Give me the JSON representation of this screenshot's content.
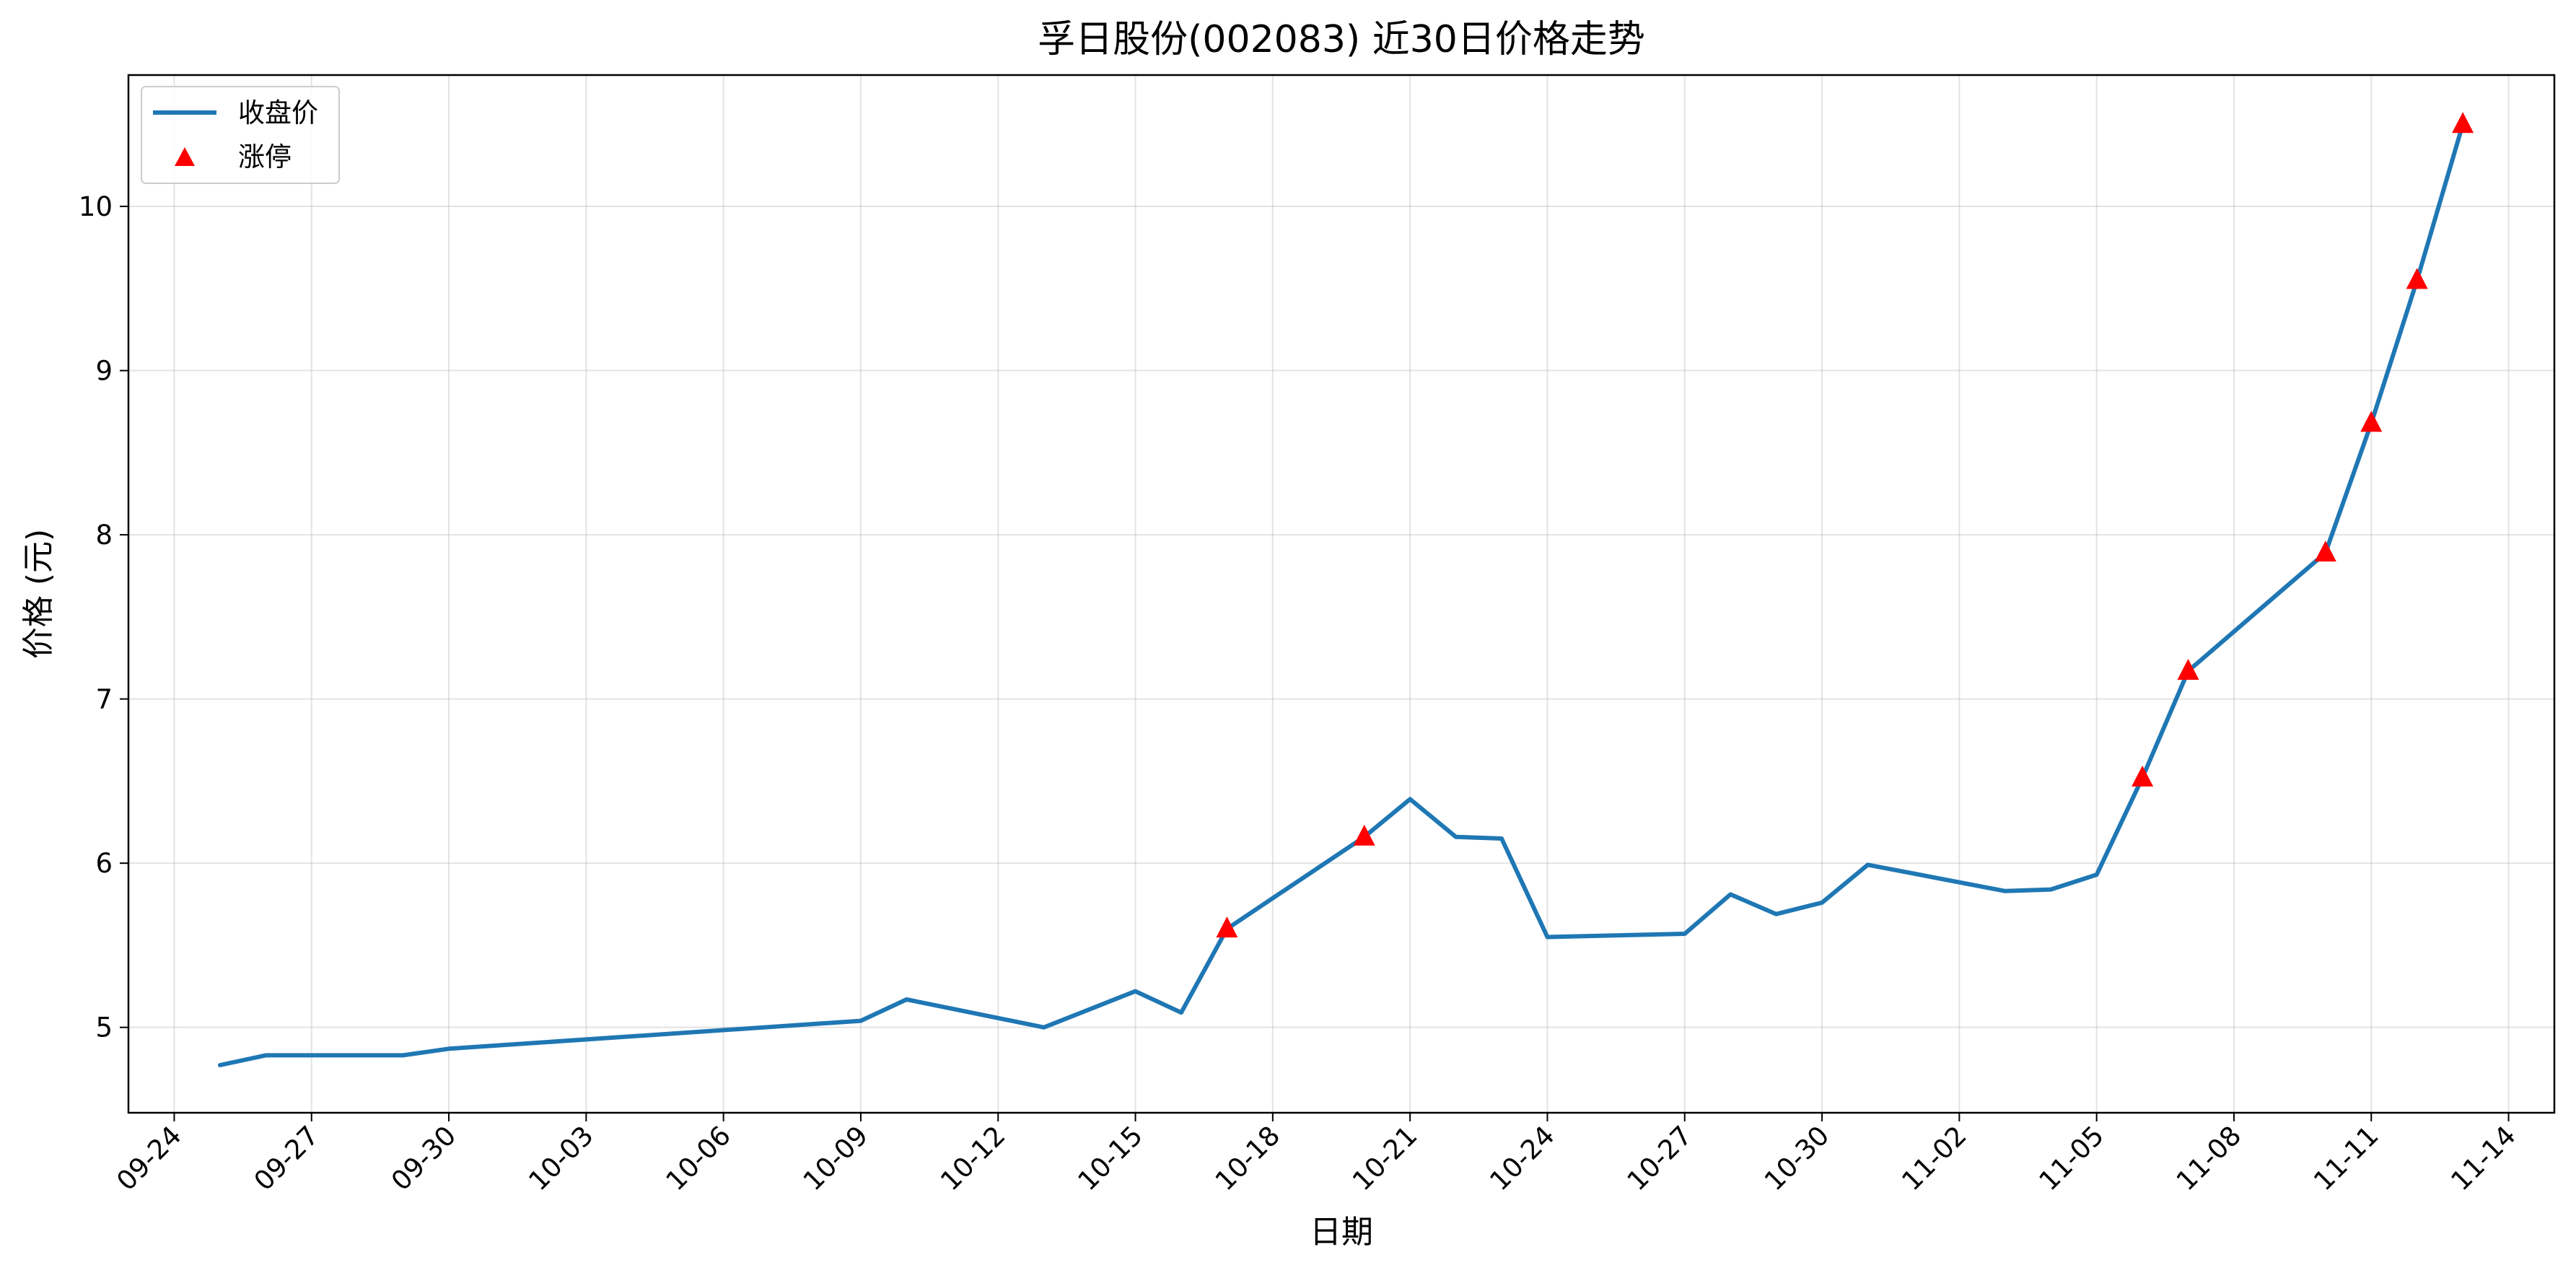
{
  "chart_data": {
    "type": "line",
    "title": "孚日股份(002083) 近30日价格走势",
    "xlabel": "日期",
    "ylabel": "价格 (元)",
    "x_ticks": [
      "09-24",
      "09-27",
      "09-30",
      "10-03",
      "10-06",
      "10-09",
      "10-12",
      "10-15",
      "10-18",
      "10-21",
      "10-24",
      "10-27",
      "10-30",
      "11-02",
      "11-05",
      "11-08",
      "11-11",
      "11-14"
    ],
    "y_ticks": [
      5,
      6,
      7,
      8,
      9,
      10
    ],
    "xlim": [
      "2024-09-23",
      "2024-11-15"
    ],
    "ylim": [
      4.48,
      10.8
    ],
    "grid": true,
    "legend_position": "upper-left",
    "series": [
      {
        "name": "收盘价",
        "kind": "line",
        "color": "#1f77b4",
        "points": [
          {
            "x": "2024-09-25",
            "y": 4.77
          },
          {
            "x": "2024-09-26",
            "y": 4.83
          },
          {
            "x": "2024-09-27",
            "y": 4.83
          },
          {
            "x": "2024-09-29",
            "y": 4.83
          },
          {
            "x": "2024-09-30",
            "y": 4.87
          },
          {
            "x": "2024-10-09",
            "y": 5.04
          },
          {
            "x": "2024-10-10",
            "y": 5.17
          },
          {
            "x": "2024-10-13",
            "y": 5.0
          },
          {
            "x": "2024-10-15",
            "y": 5.22
          },
          {
            "x": "2024-10-16",
            "y": 5.09
          },
          {
            "x": "2024-10-17",
            "y": 5.6
          },
          {
            "x": "2024-10-20",
            "y": 6.16
          },
          {
            "x": "2024-10-21",
            "y": 6.39
          },
          {
            "x": "2024-10-22",
            "y": 6.16
          },
          {
            "x": "2024-10-23",
            "y": 6.15
          },
          {
            "x": "2024-10-24",
            "y": 5.55
          },
          {
            "x": "2024-10-27",
            "y": 5.57
          },
          {
            "x": "2024-10-28",
            "y": 5.81
          },
          {
            "x": "2024-10-29",
            "y": 5.69
          },
          {
            "x": "2024-10-30",
            "y": 5.76
          },
          {
            "x": "2024-10-31",
            "y": 5.99
          },
          {
            "x": "2024-11-03",
            "y": 5.83
          },
          {
            "x": "2024-11-04",
            "y": 5.84
          },
          {
            "x": "2024-11-05",
            "y": 5.93
          },
          {
            "x": "2024-11-06",
            "y": 6.52
          },
          {
            "x": "2024-11-07",
            "y": 7.17
          },
          {
            "x": "2024-11-10",
            "y": 7.89
          },
          {
            "x": "2024-11-11",
            "y": 8.68
          },
          {
            "x": "2024-11-12",
            "y": 9.55
          },
          {
            "x": "2024-11-13",
            "y": 10.5
          }
        ]
      },
      {
        "name": "涨停",
        "kind": "scatter",
        "marker": "triangle",
        "color": "#ff0000",
        "points": [
          {
            "x": "2024-10-17",
            "y": 5.6
          },
          {
            "x": "2024-10-20",
            "y": 6.16
          },
          {
            "x": "2024-11-06",
            "y": 6.52
          },
          {
            "x": "2024-11-07",
            "y": 7.17
          },
          {
            "x": "2024-11-10",
            "y": 7.89
          },
          {
            "x": "2024-11-11",
            "y": 8.68
          },
          {
            "x": "2024-11-12",
            "y": 9.55
          },
          {
            "x": "2024-11-13",
            "y": 10.5
          }
        ]
      }
    ]
  }
}
